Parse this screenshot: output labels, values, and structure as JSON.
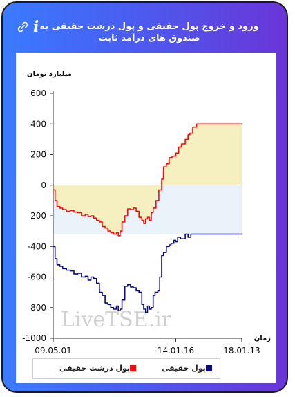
{
  "header": {
    "title": "ورود و خروج پول حقیقی و پول درشت حقیقی به صندوق های درآمد ثابت",
    "info_label": "i"
  },
  "watermark": "LiveTSE.ir",
  "colors": {
    "red": "#ee1111",
    "navy": "#0a0a7a",
    "fill_pos": "#f6efbf",
    "fill_neg": "#eaf3fa"
  },
  "chart_data": {
    "type": "line",
    "title": "ورود و خروج پول حقیقی و پول درشت حقیقی به صندوق های درآمد ثابت",
    "ylabel": "میلیارد تومان",
    "xlabel": "زمان",
    "ylim": [
      -1000,
      600
    ],
    "yticks": [
      600,
      400,
      200,
      0,
      -200,
      -400,
      -600,
      -800,
      -1000
    ],
    "x_ticks": [
      {
        "label": "09.05.01",
        "t": 0
      },
      {
        "label": "14.01.16",
        "t": 0.65
      },
      {
        "label": "18.01.13",
        "t": 1.0
      }
    ],
    "series": [
      {
        "name": "پول حقیقی",
        "color": "#0a0a7a",
        "points": [
          [
            0.0,
            -400
          ],
          [
            0.01,
            -480
          ],
          [
            0.02,
            -520
          ],
          [
            0.035,
            -530
          ],
          [
            0.05,
            -545
          ],
          [
            0.07,
            -555
          ],
          [
            0.09,
            -560
          ],
          [
            0.11,
            -580
          ],
          [
            0.13,
            -575
          ],
          [
            0.15,
            -600
          ],
          [
            0.17,
            -595
          ],
          [
            0.185,
            -620
          ],
          [
            0.2,
            -600
          ],
          [
            0.215,
            -610
          ],
          [
            0.23,
            -640
          ],
          [
            0.245,
            -700
          ],
          [
            0.26,
            -720
          ],
          [
            0.275,
            -770
          ],
          [
            0.29,
            -780
          ],
          [
            0.305,
            -800
          ],
          [
            0.32,
            -810
          ],
          [
            0.335,
            -790
          ],
          [
            0.345,
            -820
          ],
          [
            0.355,
            -810
          ],
          [
            0.365,
            -750
          ],
          [
            0.38,
            -660
          ],
          [
            0.395,
            -650
          ],
          [
            0.41,
            -665
          ],
          [
            0.425,
            -670
          ],
          [
            0.44,
            -690
          ],
          [
            0.455,
            -700
          ],
          [
            0.47,
            -780
          ],
          [
            0.48,
            -810
          ],
          [
            0.49,
            -830
          ],
          [
            0.5,
            -790
          ],
          [
            0.51,
            -810
          ],
          [
            0.52,
            -800
          ],
          [
            0.53,
            -720
          ],
          [
            0.54,
            -700
          ],
          [
            0.555,
            -690
          ],
          [
            0.565,
            -600
          ],
          [
            0.575,
            -460
          ],
          [
            0.585,
            -440
          ],
          [
            0.6,
            -400
          ],
          [
            0.615,
            -390
          ],
          [
            0.625,
            -380
          ],
          [
            0.64,
            -360
          ],
          [
            0.65,
            -370
          ],
          [
            0.66,
            -340
          ],
          [
            0.675,
            -350
          ],
          [
            0.69,
            -350
          ],
          [
            0.7,
            -320
          ],
          [
            0.715,
            -340
          ],
          [
            0.73,
            -320
          ],
          [
            0.76,
            -320
          ],
          [
            0.8,
            -320
          ],
          [
            0.85,
            -320
          ],
          [
            0.9,
            -320
          ],
          [
            0.95,
            -320
          ],
          [
            1.0,
            -320
          ]
        ]
      },
      {
        "name": "پول درشت حقیقی",
        "color": "#ee1111",
        "points": [
          [
            0.0,
            -30
          ],
          [
            0.01,
            -100
          ],
          [
            0.02,
            -140
          ],
          [
            0.035,
            -150
          ],
          [
            0.05,
            -160
          ],
          [
            0.07,
            -170
          ],
          [
            0.09,
            -165
          ],
          [
            0.11,
            -175
          ],
          [
            0.13,
            -180
          ],
          [
            0.15,
            -200
          ],
          [
            0.17,
            -190
          ],
          [
            0.185,
            -205
          ],
          [
            0.2,
            -200
          ],
          [
            0.215,
            -215
          ],
          [
            0.23,
            -230
          ],
          [
            0.245,
            -240
          ],
          [
            0.26,
            -270
          ],
          [
            0.275,
            -280
          ],
          [
            0.29,
            -300
          ],
          [
            0.305,
            -310
          ],
          [
            0.32,
            -320
          ],
          [
            0.335,
            -310
          ],
          [
            0.345,
            -330
          ],
          [
            0.355,
            -300
          ],
          [
            0.365,
            -240
          ],
          [
            0.38,
            -200
          ],
          [
            0.395,
            -155
          ],
          [
            0.41,
            -160
          ],
          [
            0.425,
            -150
          ],
          [
            0.44,
            -170
          ],
          [
            0.455,
            -210
          ],
          [
            0.47,
            -230
          ],
          [
            0.48,
            -250
          ],
          [
            0.49,
            -220
          ],
          [
            0.5,
            -210
          ],
          [
            0.51,
            -230
          ],
          [
            0.52,
            -180
          ],
          [
            0.53,
            -150
          ],
          [
            0.545,
            -100
          ],
          [
            0.56,
            -30
          ],
          [
            0.575,
            40
          ],
          [
            0.585,
            120
          ],
          [
            0.6,
            140
          ],
          [
            0.615,
            180
          ],
          [
            0.63,
            190
          ],
          [
            0.65,
            210
          ],
          [
            0.665,
            250
          ],
          [
            0.68,
            270
          ],
          [
            0.7,
            300
          ],
          [
            0.715,
            330
          ],
          [
            0.725,
            340
          ],
          [
            0.74,
            380
          ],
          [
            0.76,
            400
          ],
          [
            0.78,
            400
          ],
          [
            0.82,
            400
          ],
          [
            0.88,
            400
          ],
          [
            0.94,
            400
          ],
          [
            1.0,
            400
          ]
        ]
      }
    ],
    "legend": [
      {
        "name": "پول درشت حقیقی",
        "color": "#ee1111"
      },
      {
        "name": "پول حقیقی",
        "color": "#0a0a7a"
      }
    ]
  }
}
